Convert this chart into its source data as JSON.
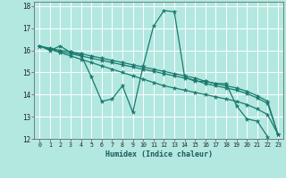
{
  "xlabel": "Humidex (Indice chaleur)",
  "bg_color": "#b3e8e0",
  "grid_color": "#ffffff",
  "line_color": "#1a7a6e",
  "xlim": [
    -0.5,
    23.5
  ],
  "ylim": [
    12,
    18.2
  ],
  "xticks": [
    0,
    1,
    2,
    3,
    4,
    5,
    6,
    7,
    8,
    9,
    10,
    11,
    12,
    13,
    14,
    15,
    16,
    17,
    18,
    19,
    20,
    21,
    22,
    23
  ],
  "yticks": [
    12,
    13,
    14,
    15,
    16,
    17,
    18
  ],
  "series": [
    [
      16.2,
      16.0,
      16.2,
      15.9,
      15.8,
      14.8,
      13.7,
      13.8,
      14.4,
      13.2,
      15.3,
      17.1,
      17.8,
      17.75,
      14.8,
      14.6,
      14.6,
      14.5,
      14.5,
      13.5,
      12.9,
      12.8,
      12.1,
      null
    ],
    [
      16.2,
      16.05,
      15.9,
      15.75,
      15.6,
      15.45,
      15.3,
      15.15,
      15.0,
      14.85,
      14.7,
      14.55,
      14.4,
      14.3,
      14.2,
      14.1,
      14.0,
      13.9,
      13.8,
      13.7,
      13.55,
      13.35,
      13.1,
      12.2
    ],
    [
      16.2,
      16.1,
      16.0,
      15.95,
      15.85,
      15.75,
      15.65,
      15.55,
      15.45,
      15.35,
      15.25,
      15.15,
      15.05,
      14.95,
      14.85,
      14.75,
      14.6,
      14.5,
      14.4,
      14.3,
      14.15,
      13.95,
      13.7,
      12.2
    ],
    [
      16.2,
      16.05,
      15.95,
      15.85,
      15.75,
      15.65,
      15.55,
      15.45,
      15.35,
      15.25,
      15.15,
      15.05,
      14.95,
      14.85,
      14.75,
      14.65,
      14.5,
      14.4,
      14.3,
      14.2,
      14.05,
      13.85,
      13.6,
      12.2
    ]
  ]
}
